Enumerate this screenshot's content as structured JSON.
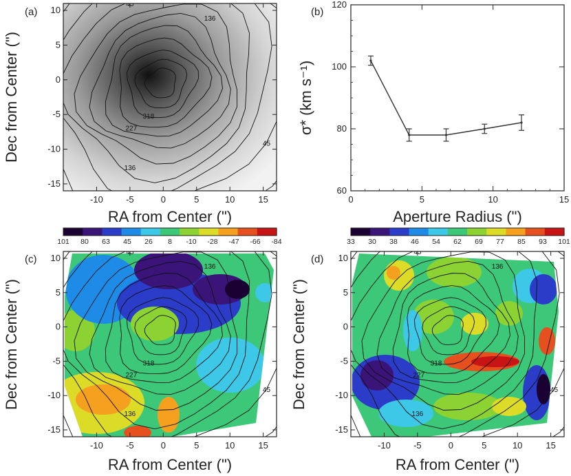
{
  "chart_data": [
    {
      "panel": "(a)",
      "type": "heatmap",
      "xlabel": "RA from Center (\")",
      "ylabel": "Dec from Center (\")",
      "xlim": [
        -15,
        17
      ],
      "ylim": [
        -16,
        11
      ],
      "x_ticks": [
        -10,
        -5,
        0,
        5,
        10,
        15
      ],
      "y_ticks": [
        -15,
        -10,
        -5,
        0,
        5,
        10
      ],
      "x_tick_labels": [
        "-10",
        "-5",
        "0",
        "5",
        "10",
        "15"
      ],
      "y_tick_labels": [
        "-15",
        "-10",
        "-5",
        "0",
        "5",
        "10"
      ],
      "colormap": "grayscale",
      "contour_labels": [
        "45",
        "136",
        "318",
        "227",
        "136",
        "45"
      ]
    },
    {
      "panel": "(b)",
      "type": "line",
      "xlabel": "Aperture Radius (\")",
      "ylabel": "σ* (km s⁻¹)",
      "xlim": [
        0,
        15
      ],
      "ylim": [
        60,
        120
      ],
      "x_ticks": [
        0,
        5,
        10,
        15
      ],
      "y_ticks": [
        60,
        80,
        100,
        120
      ],
      "x_tick_labels": [
        "0",
        "5",
        "10",
        "15"
      ],
      "y_tick_labels": [
        "60",
        "80",
        "100",
        "120"
      ],
      "x": [
        1.4,
        4.1,
        6.7,
        9.4,
        12.0
      ],
      "y": [
        102.0,
        78.0,
        78.0,
        80.0,
        82.0
      ],
      "yerr": [
        1.5,
        2.0,
        2.0,
        1.5,
        2.5
      ]
    },
    {
      "panel": "(c)",
      "type": "heatmap",
      "xlabel": "RA from Center (\")",
      "ylabel": "Dec from Center (\")",
      "xlim": [
        -15,
        17
      ],
      "ylim": [
        -16,
        11
      ],
      "x_ticks": [
        -10,
        -5,
        0,
        5,
        10,
        15
      ],
      "y_ticks": [
        -15,
        -10,
        -5,
        0,
        5,
        10
      ],
      "x_tick_labels": [
        "-10",
        "-5",
        "0",
        "5",
        "10",
        "15"
      ],
      "y_tick_labels": [
        "-15",
        "-10",
        "-5",
        "0",
        "5",
        "10"
      ],
      "colormap": "rainbow",
      "colorbar_labels": [
        "101",
        "80",
        "63",
        "45",
        "26",
        "8",
        "-10",
        "-28",
        "-47",
        "-66",
        "-84"
      ],
      "contour_labels": [
        "45",
        "136",
        "318",
        "227",
        "136",
        "45"
      ]
    },
    {
      "panel": "(d)",
      "type": "heatmap",
      "xlabel": "RA from Center (\")",
      "ylabel": "Dec from Center (\")",
      "xlim": [
        -15,
        17
      ],
      "ylim": [
        -16,
        11
      ],
      "x_ticks": [
        -10,
        -5,
        0,
        5,
        10,
        15
      ],
      "y_ticks": [
        -15,
        -10,
        -5,
        0,
        5,
        10
      ],
      "x_tick_labels": [
        "-10",
        "-5",
        "0",
        "5",
        "10",
        "15"
      ],
      "y_tick_labels": [
        "-15",
        "-10",
        "-5",
        "0",
        "5",
        "10"
      ],
      "colormap": "rainbow",
      "colorbar_labels": [
        "33",
        "30",
        "38",
        "46",
        "54",
        "62",
        "69",
        "77",
        "85",
        "93",
        "101"
      ],
      "contour_labels": [
        "45",
        "136",
        "318",
        "227",
        "136",
        "45"
      ]
    }
  ],
  "colors": {
    "rainbow": [
      "#1a0033",
      "#3a1478",
      "#2a3cc8",
      "#1e8ce6",
      "#3cc8e6",
      "#3cc878",
      "#8cd232",
      "#dcdc28",
      "#f5a01e",
      "#e6501e",
      "#c81414"
    ]
  }
}
